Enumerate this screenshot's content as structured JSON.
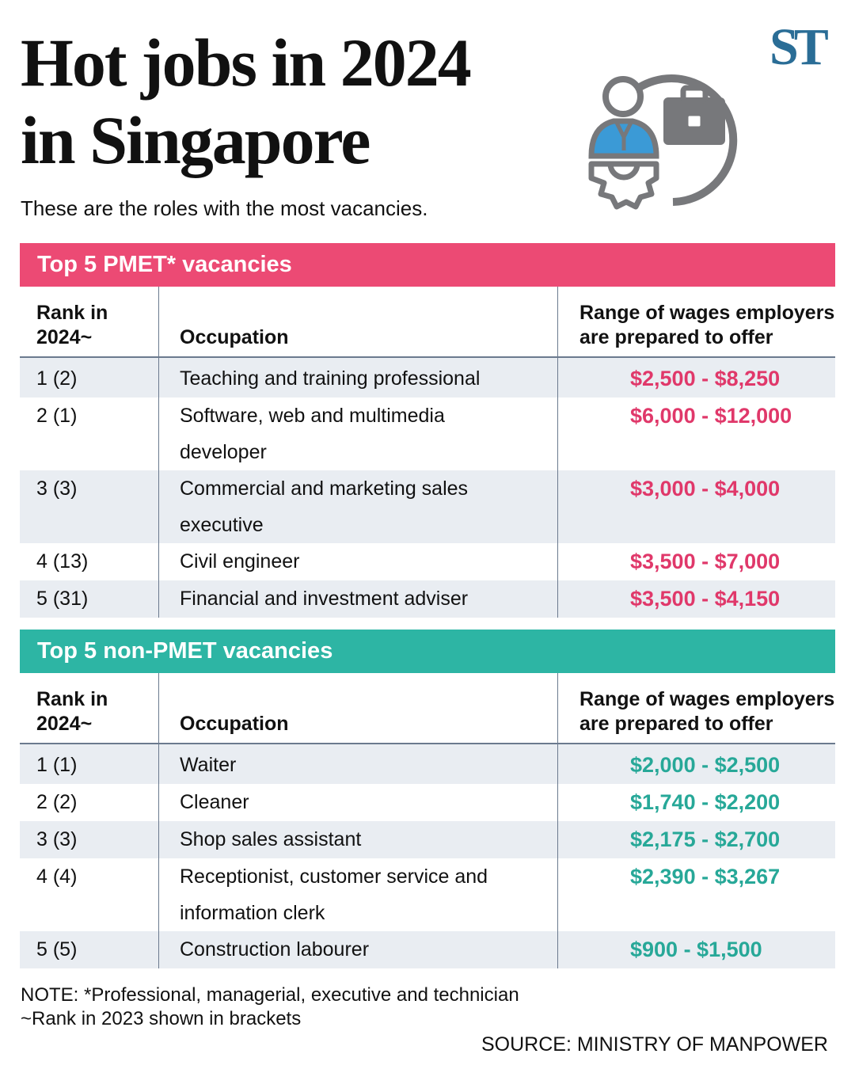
{
  "header": {
    "title_line1": "Hot jobs in 2024",
    "title_line2": "in Singapore",
    "subtitle": "These are the roles with the most vacancies.",
    "logo": "ST",
    "illustration_icon": "employee-with-briefcase-and-gear-icon"
  },
  "colors": {
    "pmet": "#ec4a74",
    "non_pmet": "#2db5a4",
    "logo": "#2a6d96",
    "row_shade": "#e9edf2"
  },
  "columns": {
    "rank": "Rank in 2024~",
    "occupation": "Occupation",
    "wages": "Range of wages employers are prepared to offer"
  },
  "pmet": {
    "heading": "Top 5 PMET* vacancies",
    "rows": [
      {
        "rank": "1 (2)",
        "occupation": "Teaching and training professional",
        "wages": "$2,500 - $8,250"
      },
      {
        "rank": "2 (1)",
        "occupation": "Software, web and multimedia developer",
        "wages": "$6,000 - $12,000"
      },
      {
        "rank": "3 (3)",
        "occupation": "Commercial and marketing sales executive",
        "wages": "$3,000 - $4,000"
      },
      {
        "rank": "4 (13)",
        "occupation": "Civil engineer",
        "wages": "$3,500 - $7,000"
      },
      {
        "rank": "5 (31)",
        "occupation": "Financial and investment adviser",
        "wages": "$3,500 - $4,150"
      }
    ]
  },
  "non_pmet": {
    "heading": "Top 5 non-PMET vacancies",
    "rows": [
      {
        "rank": "1 (1)",
        "occupation": "Waiter",
        "wages": "$2,000 - $2,500"
      },
      {
        "rank": "2 (2)",
        "occupation": "Cleaner",
        "wages": "$1,740 - $2,200"
      },
      {
        "rank": "3 (3)",
        "occupation": "Shop sales assistant",
        "wages": "$2,175 - $2,700"
      },
      {
        "rank": "4 (4)",
        "occupation": "Receptionist, customer service and information clerk",
        "wages": "$2,390 - $3,267"
      },
      {
        "rank": "5 (5)",
        "occupation": "Construction labourer",
        "wages": "$900 - $1,500"
      }
    ]
  },
  "footer": {
    "note_line1": "NOTE: *Professional, managerial, executive and technician",
    "note_line2": "~Rank in 2023 shown in brackets",
    "source": "SOURCE: MINISTRY OF MANPOWER"
  }
}
